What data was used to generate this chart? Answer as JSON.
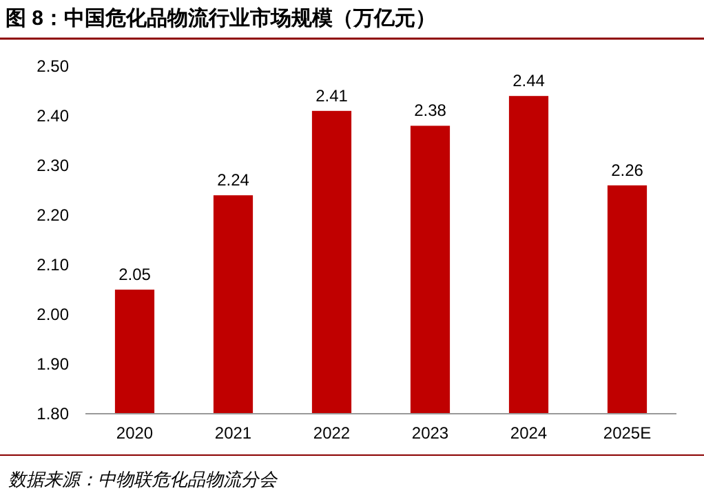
{
  "chart_data": {
    "type": "bar",
    "title": "图 8：中国危化品物流行业市场规模（万亿元）",
    "categories": [
      "2020",
      "2021",
      "2022",
      "2023",
      "2024",
      "2025E"
    ],
    "values": [
      2.05,
      2.24,
      2.41,
      2.38,
      2.44,
      2.26
    ],
    "color": "#c00000",
    "ylim": [
      1.8,
      2.5
    ],
    "yticks": [
      {
        "value": 1.8,
        "label": "1.80"
      },
      {
        "value": 1.9,
        "label": "1.90"
      },
      {
        "value": 2.0,
        "label": "2.00"
      },
      {
        "value": 2.1,
        "label": "2.10"
      },
      {
        "value": 2.2,
        "label": "2.20"
      },
      {
        "value": 2.3,
        "label": "2.30"
      },
      {
        "value": 2.4,
        "label": "2.40"
      },
      {
        "value": 2.5,
        "label": "2.50"
      }
    ],
    "data_labels": true,
    "grid": false,
    "annotations": [
      "数据来源：中物联危化品物流分会"
    ]
  }
}
